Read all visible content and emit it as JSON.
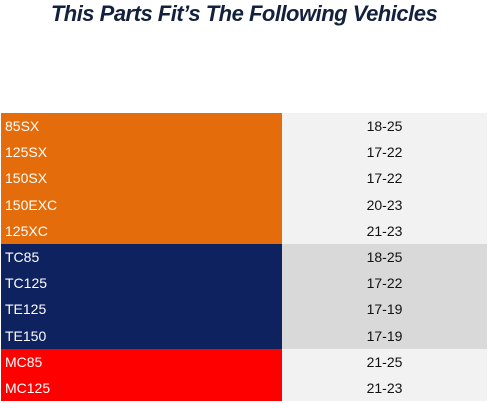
{
  "header": {
    "title": "This Parts Fit’s The Following Vehicles"
  },
  "table": {
    "groups": [
      {
        "color": "#e46c0a",
        "year_bg": "#f2f2f2",
        "rows": [
          [
            "85SX",
            "18-25"
          ],
          [
            "125SX",
            "17-22"
          ],
          [
            "150SX",
            "17-22"
          ],
          [
            "150EXC",
            "20-23"
          ],
          [
            "125XC",
            "21-23"
          ]
        ]
      },
      {
        "color": "#0f2260",
        "year_bg": "#d9d9d9",
        "rows": [
          [
            "TC85",
            "18-25"
          ],
          [
            "TC125",
            "17-22"
          ],
          [
            "TE125",
            "17-19"
          ],
          [
            "TE150",
            "17-19"
          ]
        ]
      },
      {
        "color": "#ff0000",
        "year_bg": "#f2f2f2",
        "rows": [
          [
            "MC85",
            "21-25"
          ],
          [
            "MC125",
            "21-23"
          ]
        ]
      }
    ]
  }
}
